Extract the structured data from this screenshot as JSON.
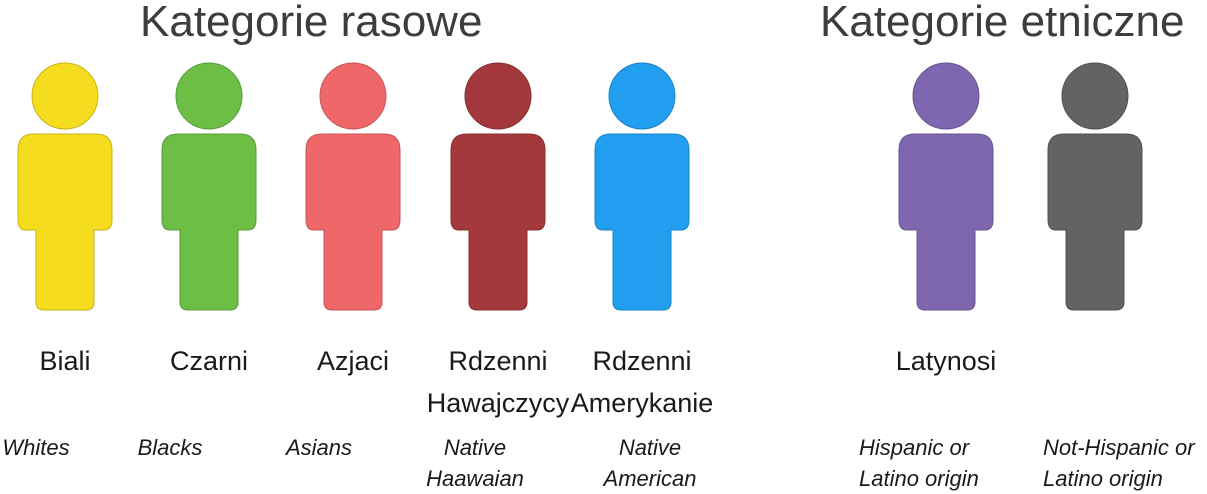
{
  "headings": {
    "racial": "Kategorie rasowe",
    "ethnic": "Kategorie etniczne"
  },
  "people": [
    {
      "icon": "person-icon",
      "color": "#F5DC1E",
      "pl_lines": [
        "Biali"
      ],
      "en_lines": [
        "Whites"
      ]
    },
    {
      "icon": "person-icon",
      "color": "#6DBE45",
      "pl_lines": [
        "Czarni"
      ],
      "en_lines": [
        "Blacks"
      ]
    },
    {
      "icon": "person-icon",
      "color": "#F0676A",
      "pl_lines": [
        "Azjaci"
      ],
      "en_lines": [
        "Asians"
      ]
    },
    {
      "icon": "person-icon",
      "color": "#A3393C",
      "pl_lines": [
        "Rdzenni",
        "Hawajczycy"
      ],
      "en_lines": [
        "Native",
        "Haawaian"
      ]
    },
    {
      "icon": "person-icon",
      "color": "#229EF0",
      "pl_lines": [
        "Rdzenni",
        "Amerykanie"
      ],
      "en_lines": [
        "Native",
        "American"
      ]
    },
    {
      "icon": "person-icon",
      "color": "#7E67AE",
      "pl_lines": [
        "Latynosi"
      ],
      "en_lines": [
        "Hispanic or",
        "Latino origin"
      ]
    },
    {
      "icon": "person-icon",
      "color": "#636363",
      "pl_lines": [],
      "en_lines": [
        "Not-Hispanic or",
        "Latino origin"
      ]
    }
  ]
}
